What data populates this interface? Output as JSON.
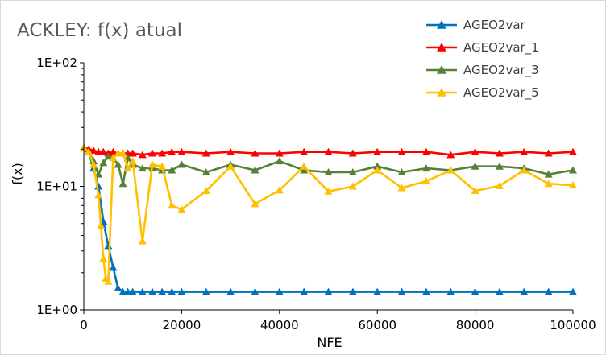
{
  "chart_data": {
    "type": "line",
    "title": "ACKLEY: f(x) atual",
    "xlabel": "NFE",
    "ylabel": "f(x)",
    "y_scale": "log",
    "xlim": [
      0,
      100000
    ],
    "ylim": [
      1,
      100
    ],
    "x_ticks": [
      "0",
      "20000",
      "40000",
      "60000",
      "80000",
      "100000"
    ],
    "y_ticks": [
      "1E+00",
      "1E+01",
      "1E+02"
    ],
    "legend_position": "top-right",
    "grid": false,
    "series": [
      {
        "name": "AGEO2var",
        "color": "#0070C0",
        "marker": "triangle",
        "points": [
          [
            0,
            20.5
          ],
          [
            1000,
            19
          ],
          [
            2000,
            14
          ],
          [
            3000,
            10
          ],
          [
            4000,
            5.2
          ],
          [
            5000,
            3.3
          ],
          [
            6000,
            2.2
          ],
          [
            7000,
            1.5
          ],
          [
            8000,
            1.4
          ],
          [
            9000,
            1.4
          ],
          [
            10000,
            1.4
          ],
          [
            12000,
            1.4
          ],
          [
            14000,
            1.4
          ],
          [
            16000,
            1.4
          ],
          [
            18000,
            1.4
          ],
          [
            20000,
            1.4
          ],
          [
            25000,
            1.4
          ],
          [
            30000,
            1.4
          ],
          [
            35000,
            1.4
          ],
          [
            40000,
            1.4
          ],
          [
            45000,
            1.4
          ],
          [
            50000,
            1.4
          ],
          [
            55000,
            1.4
          ],
          [
            60000,
            1.4
          ],
          [
            65000,
            1.4
          ],
          [
            70000,
            1.4
          ],
          [
            75000,
            1.4
          ],
          [
            80000,
            1.4
          ],
          [
            85000,
            1.4
          ],
          [
            90000,
            1.4
          ],
          [
            95000,
            1.4
          ],
          [
            100000,
            1.4
          ]
        ]
      },
      {
        "name": "AGEO2var_1",
        "color": "#FF0000",
        "marker": "triangle",
        "points": [
          [
            0,
            20.5
          ],
          [
            1000,
            20
          ],
          [
            2000,
            19.5
          ],
          [
            3000,
            19
          ],
          [
            4000,
            19
          ],
          [
            5000,
            18.5
          ],
          [
            6000,
            19
          ],
          [
            7000,
            18.5
          ],
          [
            8000,
            18.5
          ],
          [
            9000,
            18.5
          ],
          [
            10000,
            18.5
          ],
          [
            12000,
            18
          ],
          [
            14000,
            18.5
          ],
          [
            16000,
            18.5
          ],
          [
            18000,
            19
          ],
          [
            20000,
            19
          ],
          [
            25000,
            18.5
          ],
          [
            30000,
            19
          ],
          [
            35000,
            18.5
          ],
          [
            40000,
            18.5
          ],
          [
            45000,
            19
          ],
          [
            50000,
            19
          ],
          [
            55000,
            18.5
          ],
          [
            60000,
            19
          ],
          [
            65000,
            19
          ],
          [
            70000,
            19
          ],
          [
            75000,
            18
          ],
          [
            80000,
            19
          ],
          [
            85000,
            18.5
          ],
          [
            90000,
            19
          ],
          [
            95000,
            18.5
          ],
          [
            100000,
            19
          ]
        ]
      },
      {
        "name": "AGEO2var_3",
        "color": "#548235",
        "marker": "triangle",
        "points": [
          [
            0,
            20.5
          ],
          [
            1000,
            19
          ],
          [
            2000,
            16
          ],
          [
            3000,
            12.5
          ],
          [
            4000,
            15.5
          ],
          [
            5000,
            17.5
          ],
          [
            6000,
            17
          ],
          [
            7000,
            15
          ],
          [
            8000,
            10.5
          ],
          [
            9000,
            17
          ],
          [
            10000,
            15
          ],
          [
            12000,
            14
          ],
          [
            14000,
            14
          ],
          [
            16000,
            13.5
          ],
          [
            18000,
            13.5
          ],
          [
            20000,
            15
          ],
          [
            25000,
            13
          ],
          [
            30000,
            15
          ],
          [
            35000,
            13.5
          ],
          [
            40000,
            16
          ],
          [
            45000,
            13.5
          ],
          [
            50000,
            13
          ],
          [
            55000,
            13
          ],
          [
            60000,
            14.5
          ],
          [
            65000,
            13
          ],
          [
            70000,
            14
          ],
          [
            75000,
            13.5
          ],
          [
            80000,
            14.5
          ],
          [
            85000,
            14.5
          ],
          [
            90000,
            14
          ],
          [
            95000,
            12.5
          ],
          [
            100000,
            13.5
          ]
        ]
      },
      {
        "name": "AGEO2var_5",
        "color": "#FFC000",
        "marker": "triangle",
        "points": [
          [
            0,
            20.5
          ],
          [
            1000,
            19
          ],
          [
            2000,
            15
          ],
          [
            3000,
            8.5
          ],
          [
            3500,
            4.8
          ],
          [
            4000,
            2.6
          ],
          [
            4500,
            1.8
          ],
          [
            5000,
            1.7
          ],
          [
            6000,
            17
          ],
          [
            7000,
            18.5
          ],
          [
            8000,
            18.5
          ],
          [
            9000,
            14
          ],
          [
            10000,
            16
          ],
          [
            12000,
            3.6
          ],
          [
            14000,
            15
          ],
          [
            16000,
            14.5
          ],
          [
            18000,
            7
          ],
          [
            20000,
            6.5
          ],
          [
            25000,
            9.2
          ],
          [
            30000,
            14.5
          ],
          [
            35000,
            7.2
          ],
          [
            40000,
            9.3
          ],
          [
            45000,
            14.5
          ],
          [
            50000,
            9.1
          ],
          [
            55000,
            10
          ],
          [
            60000,
            13.5
          ],
          [
            65000,
            9.7
          ],
          [
            70000,
            11
          ],
          [
            75000,
            13.5
          ],
          [
            80000,
            9.2
          ],
          [
            85000,
            10.1
          ],
          [
            90000,
            13.5
          ],
          [
            95000,
            10.5
          ],
          [
            100000,
            10.2
          ]
        ]
      }
    ]
  }
}
